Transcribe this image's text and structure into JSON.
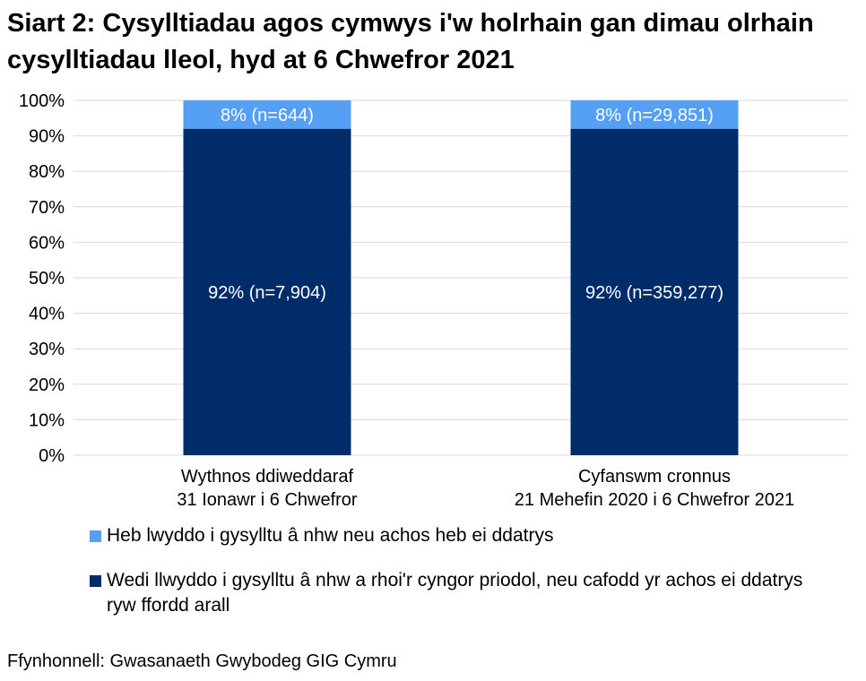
{
  "chart_data": {
    "type": "bar",
    "stacked": true,
    "title": "Siart 2: Cysylltiadau agos cymwys i'w holrhain gan dimau olrhain cysylltiadau lleol, hyd at 6 Chwefror 2021",
    "categories": [
      [
        "Wythnos ddiweddaraf",
        "31 Ionawr i 6 Chwefror"
      ],
      [
        "Cyfanswm cronnus",
        "21 Mehefin 2020 i 6 Chwefror 2021"
      ]
    ],
    "series": [
      {
        "name": "Wedi llwyddo i gysylltu â nhw a rhoi'r cyngor priodol, neu cafodd yr achos ei ddatrys ryw ffordd arall",
        "color": "#002D6A",
        "values": [
          92,
          92
        ],
        "labels": [
          "92% (n=7,904)",
          "92% (n=359,277)"
        ]
      },
      {
        "name": "Heb lwyddo i gysylltu â nhw neu achos heb ei ddatrys",
        "color": "#559FF5",
        "values": [
          8,
          8
        ],
        "labels": [
          "8% (n=644)",
          "8% (n=29,851)"
        ]
      }
    ],
    "ylim": [
      0,
      100
    ],
    "yticks": [
      "0%",
      "10%",
      "20%",
      "30%",
      "40%",
      "50%",
      "60%",
      "70%",
      "80%",
      "90%",
      "100%"
    ],
    "grid": true,
    "legend_placement": "bottom",
    "xlabel": "",
    "ylabel": ""
  },
  "legend": {
    "items": [
      {
        "label": "Heb lwyddo i gysylltu â nhw neu achos heb ei ddatrys",
        "color": "#559FF5"
      },
      {
        "label": "Wedi llwyddo i gysylltu â nhw a rhoi'r cyngor priodol, neu cafodd yr achos ei ddatrys ryw ffordd arall",
        "color": "#002D6A"
      }
    ]
  },
  "source": "Ffynhonnell: Gwasanaeth Gwybodeg GIG Cymru"
}
